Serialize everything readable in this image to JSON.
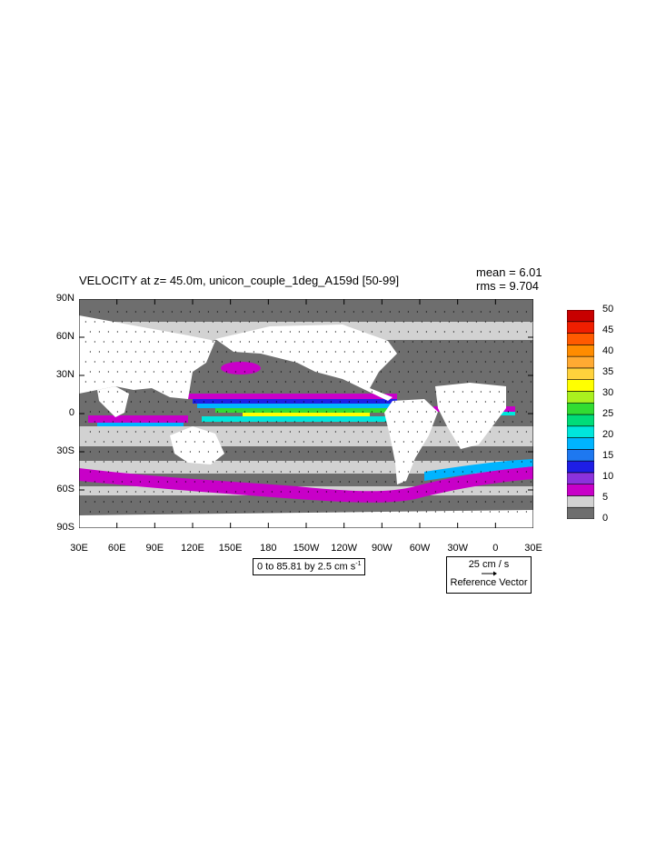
{
  "chart_data": {
    "type": "heatmap",
    "title": "VELOCITY at z=  45.0m, unicon_couple_1deg_A159d [50-99]",
    "stats": {
      "mean": "mean = 6.01",
      "rms": "rms = 9.704"
    },
    "x_axis": {
      "range": [
        30,
        390
      ],
      "ticks": [
        30,
        60,
        90,
        120,
        150,
        180,
        210,
        240,
        270,
        300,
        330,
        360,
        390
      ],
      "tick_labels": [
        "30E",
        "60E",
        "90E",
        "120E",
        "150E",
        "180",
        "150W",
        "120W",
        "90W",
        "60W",
        "30W",
        "0",
        "30E"
      ]
    },
    "y_axis": {
      "range": [
        -90,
        90
      ],
      "ticks": [
        90,
        60,
        30,
        0,
        -30,
        -60,
        -90
      ],
      "tick_labels": [
        "90N",
        "60N",
        "30N",
        "0",
        "30S",
        "60S",
        "90S"
      ]
    },
    "colorbar": {
      "levels": [
        0,
        5,
        10,
        15,
        20,
        25,
        30,
        35,
        40,
        45,
        50
      ],
      "labels": [
        "0",
        "5",
        "10",
        "15",
        "20",
        "25",
        "30",
        "35",
        "40",
        "45",
        "50"
      ],
      "colors": [
        "#6e6e6e",
        "#d2d2d2",
        "#c800c8",
        "#8c32dc",
        "#1e1ee6",
        "#1e78f0",
        "#00b4ff",
        "#00e6dc",
        "#00dc78",
        "#32dc32",
        "#aaf01e",
        "#ffff00",
        "#ffd23c",
        "#ffaa32",
        "#ff8c00",
        "#ff5a00",
        "#f01e00",
        "#c80000"
      ],
      "color_note": "18 color bands between levels"
    },
    "contour_info": "0 to 85.81 by 2.5 cm s",
    "contour_info_sup": "-1",
    "reference_vector": {
      "magnitude": "25 cm / s",
      "label": "Reference Vector"
    }
  }
}
